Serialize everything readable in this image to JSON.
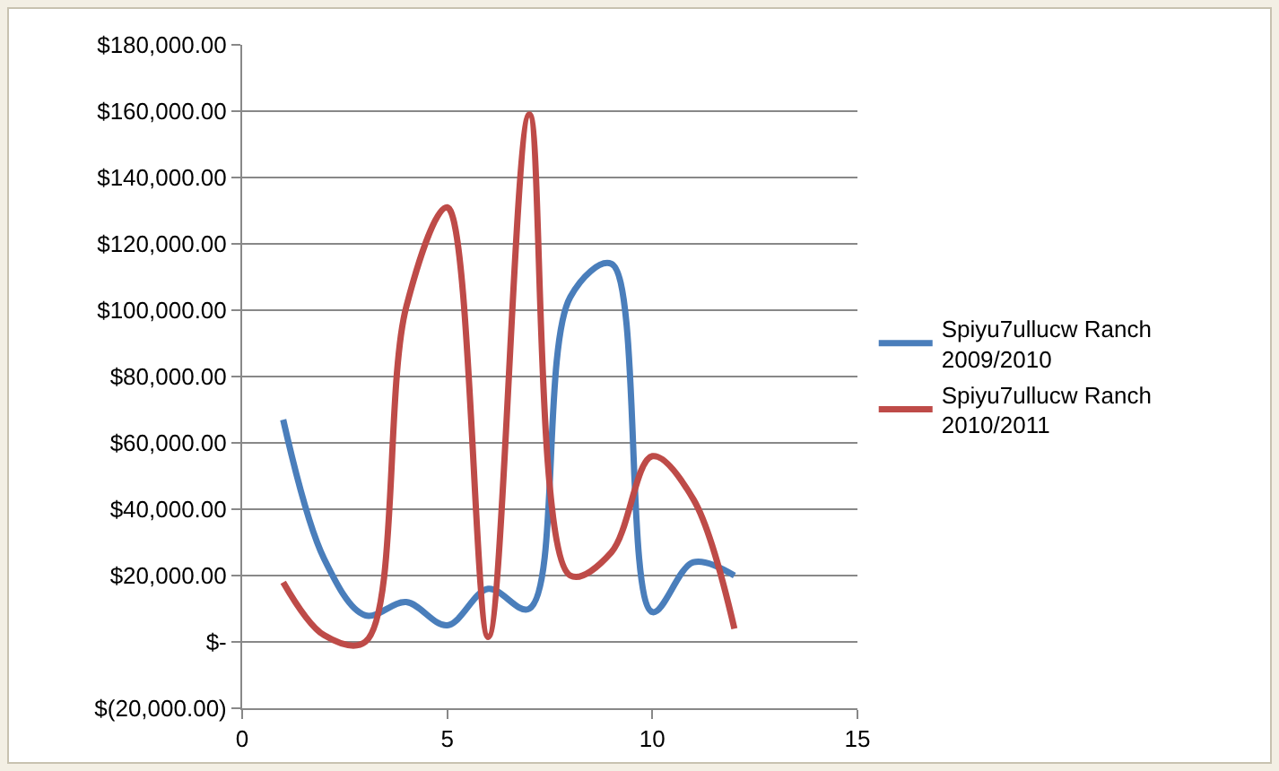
{
  "chart_data": {
    "type": "line",
    "x": [
      1,
      2,
      3,
      4,
      5,
      6,
      7,
      8,
      9,
      10,
      11,
      12
    ],
    "series": [
      {
        "name": "Spiyu7ullucw Ranch 2009/2010",
        "color": "#4a7ebb",
        "values": [
          67000,
          25000,
          8000,
          12000,
          5000,
          16000,
          10000,
          104000,
          114000,
          9000,
          24000,
          20000
        ]
      },
      {
        "name": "Spiyu7ullucw Ranch 2010/2011",
        "color": "#be4b48",
        "values": [
          18000,
          2000,
          0,
          101000,
          131000,
          1500,
          159000,
          20000,
          27000,
          56000,
          43000,
          4000
        ]
      }
    ],
    "xlim": [
      0,
      15
    ],
    "xticks": [
      0,
      5,
      10,
      15
    ],
    "ylim": [
      -20000,
      180000
    ],
    "yticks": [
      {
        "value": -20000,
        "label": "$(20,000.00)"
      },
      {
        "value": 0,
        "label": "$-"
      },
      {
        "value": 20000,
        "label": "$20,000.00"
      },
      {
        "value": 40000,
        "label": "$40,000.00"
      },
      {
        "value": 60000,
        "label": "$60,000.00"
      },
      {
        "value": 80000,
        "label": "$80,000.00"
      },
      {
        "value": 100000,
        "label": "$100,000.00"
      },
      {
        "value": 120000,
        "label": "$120,000.00"
      },
      {
        "value": 140000,
        "label": "$140,000.00"
      },
      {
        "value": 160000,
        "label": "$160,000.00"
      },
      {
        "value": 180000,
        "label": "$180,000.00"
      }
    ],
    "grid": "y",
    "legend": "right",
    "marker": "none",
    "line_style": "solid"
  }
}
